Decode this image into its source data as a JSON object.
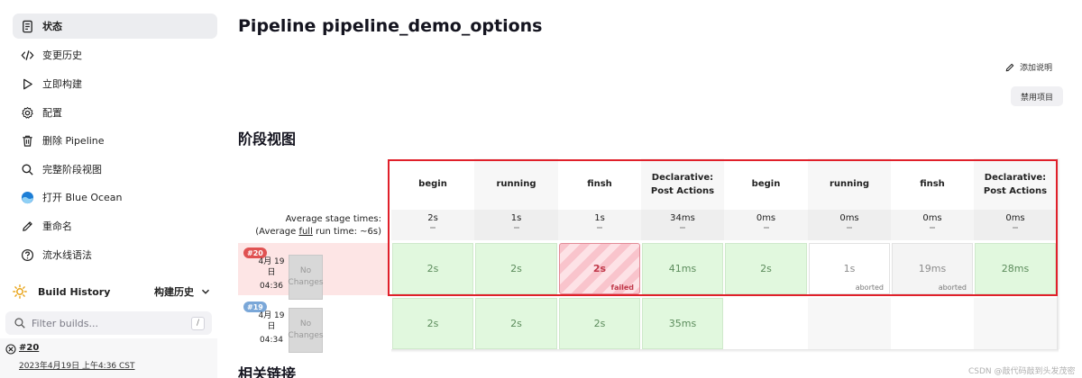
{
  "sidebar": {
    "items": [
      {
        "label": "状态",
        "icon": "document-icon"
      },
      {
        "label": "变更历史",
        "icon": "code-icon"
      },
      {
        "label": "立即构建",
        "icon": "play-icon"
      },
      {
        "label": "配置",
        "icon": "gear-icon"
      },
      {
        "label": "删除 Pipeline",
        "icon": "trash-icon"
      },
      {
        "label": "完整阶段视图",
        "icon": "search-icon"
      },
      {
        "label": "打开 Blue Ocean",
        "icon": "blue-ocean-icon"
      },
      {
        "label": "重命名",
        "icon": "pencil-icon"
      },
      {
        "label": "流水线语法",
        "icon": "help-icon"
      }
    ],
    "build_history": {
      "title": "Build History",
      "toggle_label": "构建历史",
      "filter_placeholder": "Filter builds...",
      "filter_shortcut": "/",
      "entry": {
        "number": "#20",
        "date": "2023年4月19日 上午4:36 CST"
      }
    }
  },
  "main": {
    "title": "Pipeline pipeline_demo_options",
    "add_description": "添加说明",
    "disable_project": "禁用项目",
    "stage_view_heading": "阶段视图",
    "related_links_heading": "相关链接",
    "avg_label_1": "Average stage times:",
    "avg_label_2_pre": "(Average ",
    "avg_label_2_link": "full",
    "avg_label_2_post": " run time: ~6s)",
    "stages": [
      {
        "name_1": "begin",
        "name_2": "",
        "avg": "2s"
      },
      {
        "name_1": "running",
        "name_2": "",
        "avg": "1s"
      },
      {
        "name_1": "finsh",
        "name_2": "",
        "avg": "1s"
      },
      {
        "name_1": "Declarative:",
        "name_2": "Post Actions",
        "avg": "34ms"
      },
      {
        "name_1": "begin",
        "name_2": "",
        "avg": "0ms"
      },
      {
        "name_1": "running",
        "name_2": "",
        "avg": "0ms"
      },
      {
        "name_1": "finsh",
        "name_2": "",
        "avg": "0ms"
      },
      {
        "name_1": "Declarative:",
        "name_2": "Post Actions",
        "avg": "0ms"
      }
    ],
    "builds": [
      {
        "number": "#20",
        "date_1": "4月 19",
        "date_2": "日",
        "time": "04:36",
        "changes_1": "No",
        "changes_2": "Changes",
        "cells": [
          {
            "value": "2s",
            "status": "success",
            "tag": ""
          },
          {
            "value": "2s",
            "status": "success",
            "tag": ""
          },
          {
            "value": "2s",
            "status": "failed",
            "tag": "failed"
          },
          {
            "value": "41ms",
            "status": "success",
            "tag": ""
          },
          {
            "value": "2s",
            "status": "success",
            "tag": ""
          },
          {
            "value": "1s",
            "status": "aborted",
            "tag": "aborted"
          },
          {
            "value": "19ms",
            "status": "aborted2",
            "tag": "aborted"
          },
          {
            "value": "28ms",
            "status": "success",
            "tag": ""
          }
        ]
      },
      {
        "number": "#19",
        "date_1": "4月 19",
        "date_2": "日",
        "time": "04:34",
        "changes_1": "No",
        "changes_2": "Changes",
        "cells": [
          {
            "value": "2s",
            "status": "success",
            "tag": ""
          },
          {
            "value": "2s",
            "status": "success",
            "tag": ""
          },
          {
            "value": "2s",
            "status": "success",
            "tag": ""
          },
          {
            "value": "35ms",
            "status": "success",
            "tag": ""
          }
        ]
      }
    ]
  },
  "watermark": "CSDN @敲代码敲到头发茂密"
}
